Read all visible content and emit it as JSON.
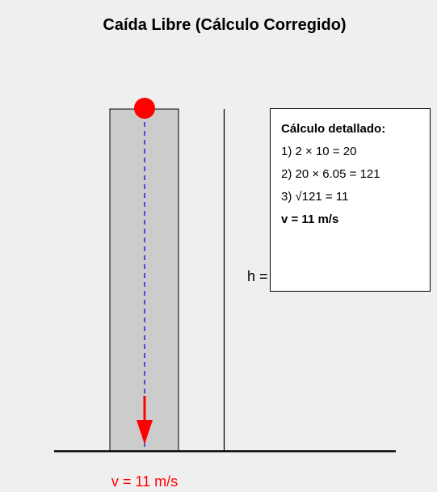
{
  "title": "Caída Libre (Cálculo Corregido)",
  "height_label": "h =",
  "calculation": {
    "heading": "Cálculo detallado:",
    "steps": [
      "1) 2 × 10 = 20",
      "2) 20 × 6.05 = 121",
      "3) √121 = 11"
    ],
    "result": "v = 11 m/s"
  },
  "velocity_label": "v = 11 m/s",
  "colors": {
    "background": "#efefef",
    "column_fill": "#cccccc",
    "ball": "#ff0000",
    "path_dashed": "#2222dd",
    "velocity_arrow": "#ff0000",
    "ground": "#000000"
  }
}
